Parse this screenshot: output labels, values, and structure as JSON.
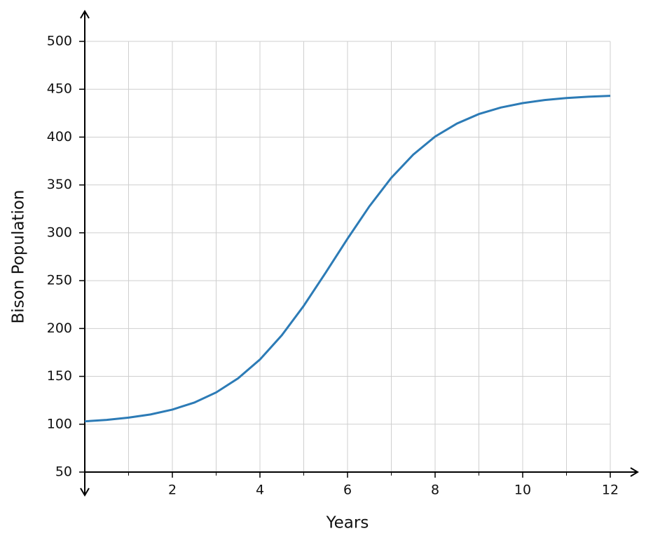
{
  "chart_data": {
    "type": "line",
    "x_label": "Years",
    "y_label": "Bison Population",
    "x": [
      0,
      0.5,
      1,
      1.5,
      2,
      2.5,
      3,
      3.5,
      4,
      4.5,
      5,
      5.5,
      6,
      6.5,
      7,
      7.5,
      8,
      8.5,
      9,
      9.5,
      10,
      10.5,
      11,
      11.5,
      12
    ],
    "series": [
      {
        "name": "Bison Population",
        "color": "#2c7bb6",
        "values": [
          103,
          104.5,
          106.9,
          110.2,
          115.3,
          122.6,
          133.2,
          147.9,
          167.6,
          193,
          223.7,
          258.3,
          293.8,
          327.7,
          357.5,
          381.7,
          400.5,
          414.2,
          424.1,
          430.9,
          435.5,
          438.7,
          440.8,
          442.2,
          443.1
        ]
      }
    ],
    "xlim": [
      0,
      12
    ],
    "ylim": [
      50,
      500
    ],
    "xticks": [
      2,
      4,
      6,
      8,
      10,
      12
    ],
    "xminorticks": [
      1,
      3,
      5,
      7,
      9,
      11
    ],
    "yticks": [
      50,
      100,
      150,
      200,
      250,
      300,
      350,
      400,
      450,
      500
    ],
    "grid": true
  }
}
